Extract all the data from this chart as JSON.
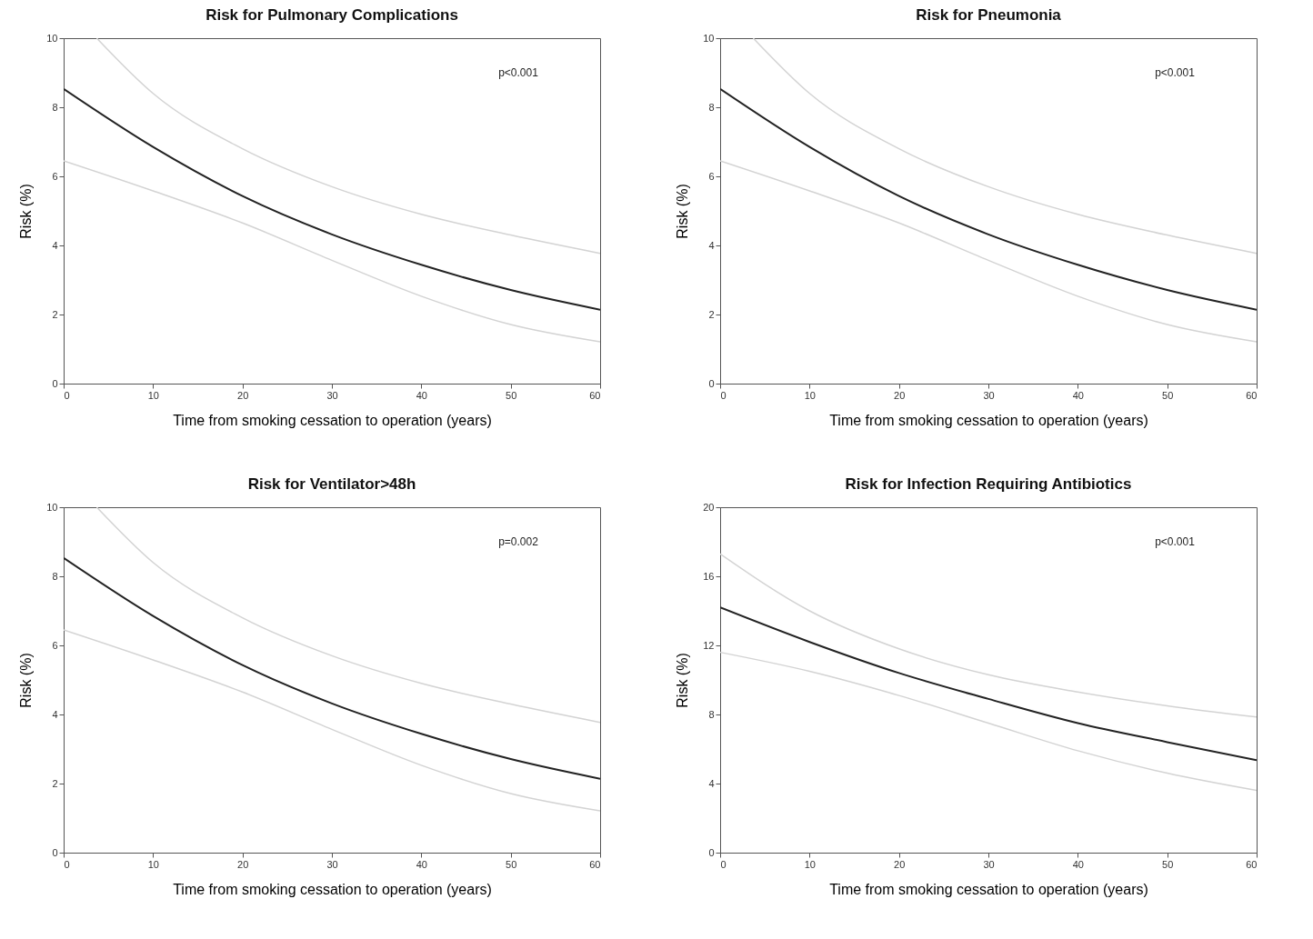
{
  "chart_data": [
    {
      "type": "line",
      "title": "Risk for Pulmonary Complications",
      "xlabel": "Time from smoking cessation to operation (years)",
      "ylabel": "Risk (%)",
      "xlim": [
        0,
        60
      ],
      "xticks": [
        0,
        10,
        20,
        30,
        40,
        50,
        60
      ],
      "ylim": [
        0,
        10
      ],
      "yticks": [
        0,
        2,
        4,
        6,
        8,
        10
      ],
      "grid": false,
      "annotations": [
        "p<0.001"
      ],
      "series": [
        {
          "color": "#d3d3d3",
          "x": [
            3.7,
            10,
            20,
            30,
            40,
            50,
            60
          ],
          "values": [
            10,
            8.4,
            6.8,
            5.7,
            4.9,
            4.3,
            3.77
          ]
        },
        {
          "color": "#d3d3d3",
          "x": [
            0,
            10,
            20,
            30,
            40,
            50,
            60
          ],
          "values": [
            6.45,
            5.58,
            4.65,
            3.57,
            2.53,
            1.71,
            1.21
          ]
        },
        {
          "color": "#222222",
          "x": [
            0,
            10,
            20,
            30,
            40,
            50,
            60
          ],
          "values": [
            8.53,
            6.85,
            5.43,
            4.32,
            3.44,
            2.71,
            2.14
          ]
        }
      ]
    },
    {
      "type": "line",
      "title": "Risk for Pneumonia",
      "xlabel": "Time from smoking cessation to operation (years)",
      "ylabel": "Risk (%)",
      "xlim": [
        0,
        60
      ],
      "xticks": [
        0,
        10,
        20,
        30,
        40,
        50,
        60
      ],
      "ylim": [
        0,
        10
      ],
      "yticks": [
        0,
        2,
        4,
        6,
        8,
        10
      ],
      "grid": false,
      "annotations": [
        "p<0.001"
      ],
      "series": [
        {
          "color": "#d3d3d3",
          "x": [
            3.7,
            10,
            20,
            30,
            40,
            50,
            60
          ],
          "values": [
            10,
            8.4,
            6.8,
            5.7,
            4.9,
            4.3,
            3.77
          ]
        },
        {
          "color": "#d3d3d3",
          "x": [
            0,
            10,
            20,
            30,
            40,
            50,
            60
          ],
          "values": [
            6.45,
            5.58,
            4.65,
            3.57,
            2.53,
            1.71,
            1.21
          ]
        },
        {
          "color": "#222222",
          "x": [
            0,
            10,
            20,
            30,
            40,
            50,
            60
          ],
          "values": [
            8.53,
            6.85,
            5.43,
            4.32,
            3.44,
            2.71,
            2.14
          ]
        }
      ]
    },
    {
      "type": "line",
      "title": "Risk for Ventilator>48h",
      "xlabel": "Time from smoking cessation to operation (years)",
      "ylabel": "Risk (%)",
      "xlim": [
        0,
        60
      ],
      "xticks": [
        0,
        10,
        20,
        30,
        40,
        50,
        60
      ],
      "ylim": [
        0,
        10
      ],
      "yticks": [
        0,
        2,
        4,
        6,
        8,
        10
      ],
      "grid": false,
      "annotations": [
        "p=0.002"
      ],
      "series": [
        {
          "color": "#d3d3d3",
          "x": [
            3.7,
            10,
            20,
            30,
            40,
            50,
            60
          ],
          "values": [
            10,
            8.4,
            6.8,
            5.7,
            4.9,
            4.3,
            3.77
          ]
        },
        {
          "color": "#d3d3d3",
          "x": [
            0,
            10,
            20,
            30,
            40,
            50,
            60
          ],
          "values": [
            6.45,
            5.58,
            4.65,
            3.57,
            2.53,
            1.71,
            1.21
          ]
        },
        {
          "color": "#222222",
          "x": [
            0,
            10,
            20,
            30,
            40,
            50,
            60
          ],
          "values": [
            8.53,
            6.85,
            5.43,
            4.32,
            3.44,
            2.71,
            2.14
          ]
        }
      ]
    },
    {
      "type": "line",
      "title": "Risk for Infection Requiring Antibiotics",
      "xlabel": "Time from smoking cessation to operation (years)",
      "ylabel": "Risk (%)",
      "xlim": [
        0,
        60
      ],
      "xticks": [
        0,
        10,
        20,
        30,
        40,
        50,
        60
      ],
      "ylim": [
        0,
        20
      ],
      "yticks": [
        0,
        4,
        8,
        12,
        16,
        20
      ],
      "grid": false,
      "annotations": [
        "p<0.001"
      ],
      "series": [
        {
          "color": "#d3d3d3",
          "x": [
            0,
            10,
            20,
            30,
            40,
            50,
            60
          ],
          "values": [
            17.3,
            14.0,
            11.8,
            10.3,
            9.3,
            8.5,
            7.85
          ]
        },
        {
          "color": "#d3d3d3",
          "x": [
            0,
            10,
            20,
            30,
            40,
            50,
            60
          ],
          "values": [
            11.6,
            10.5,
            9.1,
            7.5,
            5.9,
            4.6,
            3.6
          ]
        },
        {
          "color": "#222222",
          "x": [
            0,
            10,
            20,
            30,
            40,
            50,
            60
          ],
          "values": [
            14.2,
            12.2,
            10.4,
            8.9,
            7.5,
            6.4,
            5.35
          ]
        }
      ]
    }
  ]
}
